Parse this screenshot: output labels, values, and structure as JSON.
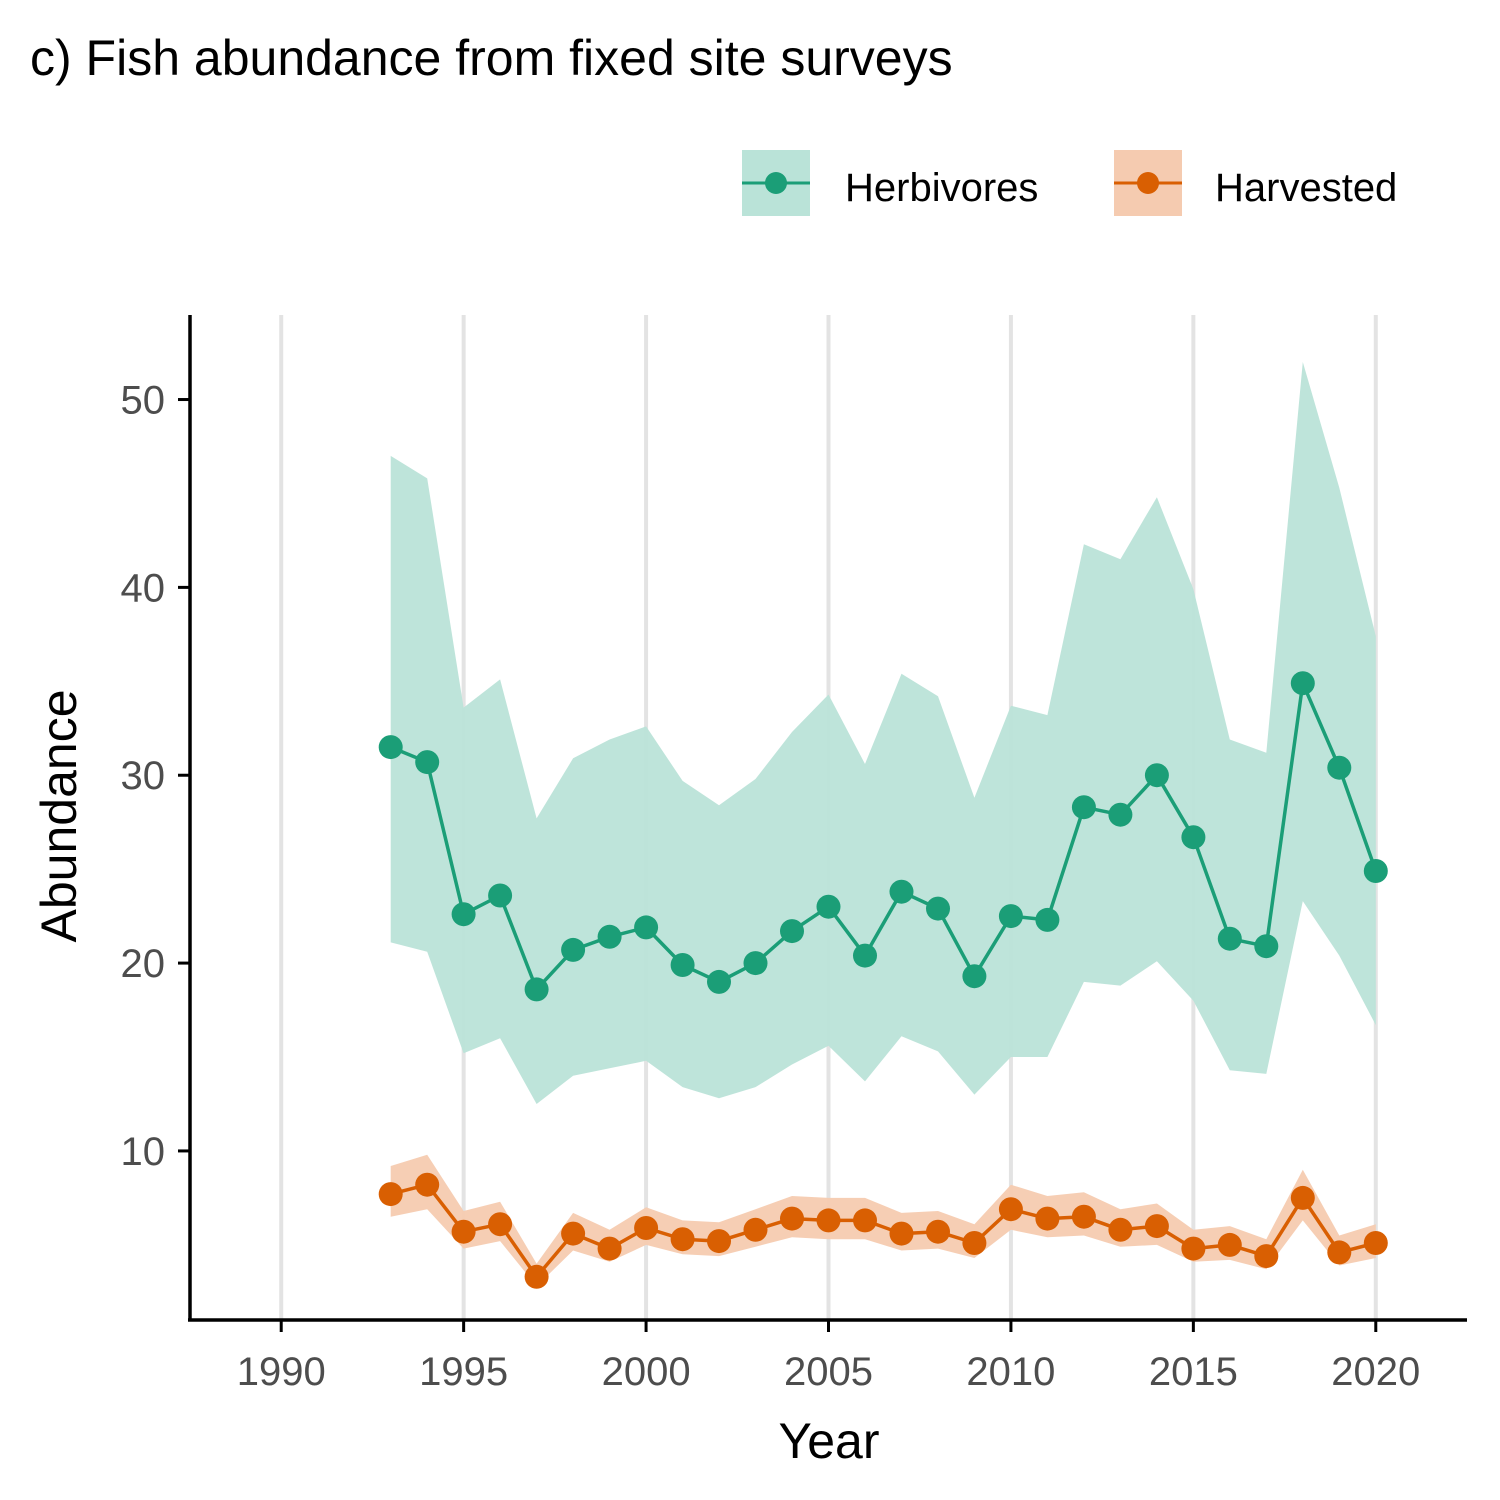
{
  "chart_data": {
    "type": "line",
    "title": "c) Fish abundance from fixed site surveys",
    "xlabel": "Year",
    "ylabel": "Abundance",
    "xlim": [
      1987.5,
      2022.5
    ],
    "ylim": [
      1,
      54.5
    ],
    "x_ticks": [
      1990,
      1995,
      2000,
      2005,
      2010,
      2015,
      2020
    ],
    "x_tick_labels": [
      "1990",
      "1995",
      "2000",
      "2005",
      "2010",
      "2015",
      "2020"
    ],
    "y_ticks": [
      10,
      20,
      30,
      40,
      50
    ],
    "y_tick_labels": [
      "10",
      "20",
      "30",
      "40",
      "50"
    ],
    "grid": "vertical major lines only",
    "legend_position": "top-right",
    "x": [
      1993,
      1994,
      1995,
      1996,
      1997,
      1998,
      1999,
      2000,
      2001,
      2002,
      2003,
      2004,
      2005,
      2006,
      2007,
      2008,
      2009,
      2010,
      2011,
      2012,
      2013,
      2014,
      2015,
      2016,
      2017,
      2018,
      2019,
      2020
    ],
    "series": [
      {
        "name": "Herbivores",
        "color": "#1b9e77",
        "ribbon_color": "#bae3d8",
        "values": [
          31.5,
          30.7,
          22.6,
          23.6,
          18.6,
          20.7,
          21.4,
          21.9,
          19.9,
          19.0,
          20.0,
          21.7,
          23.0,
          20.4,
          23.8,
          22.9,
          19.3,
          22.5,
          22.3,
          28.3,
          27.9,
          30.0,
          26.7,
          21.3,
          20.9,
          34.9,
          30.4,
          24.9
        ],
        "lower": [
          21.1,
          20.6,
          15.2,
          16.0,
          12.5,
          14.0,
          14.4,
          14.8,
          13.4,
          12.8,
          13.4,
          14.6,
          15.6,
          13.7,
          16.1,
          15.3,
          13.0,
          15.0,
          15.0,
          19.0,
          18.8,
          20.1,
          18.0,
          14.3,
          14.1,
          23.3,
          20.4,
          16.7
        ],
        "upper": [
          47.0,
          45.8,
          33.6,
          35.1,
          27.7,
          30.9,
          31.9,
          32.6,
          29.7,
          28.4,
          29.8,
          32.3,
          34.3,
          30.6,
          35.4,
          34.2,
          28.8,
          33.7,
          33.2,
          42.3,
          41.5,
          44.8,
          39.9,
          31.9,
          31.2,
          52.0,
          45.3,
          37.4
        ]
      },
      {
        "name": "Harvested",
        "color": "#d95f02",
        "ribbon_color": "#f5cbb0",
        "values": [
          7.7,
          8.2,
          5.7,
          6.1,
          3.3,
          5.6,
          4.8,
          5.9,
          5.3,
          5.2,
          5.8,
          6.4,
          6.3,
          6.3,
          5.6,
          5.7,
          5.1,
          6.9,
          6.4,
          6.5,
          5.8,
          6.0,
          4.8,
          5.0,
          4.4,
          7.5,
          4.6,
          5.1
        ],
        "lower": [
          6.5,
          6.9,
          4.8,
          5.2,
          2.8,
          4.7,
          4.1,
          5.0,
          4.5,
          4.4,
          4.9,
          5.4,
          5.3,
          5.3,
          4.7,
          4.8,
          4.3,
          5.8,
          5.4,
          5.5,
          4.9,
          5.0,
          4.1,
          4.2,
          3.7,
          6.3,
          3.9,
          4.3
        ],
        "upper": [
          9.2,
          9.8,
          6.8,
          7.3,
          4.0,
          6.7,
          5.8,
          7.0,
          6.3,
          6.2,
          6.9,
          7.6,
          7.5,
          7.5,
          6.7,
          6.8,
          6.1,
          8.2,
          7.6,
          7.8,
          6.9,
          7.2,
          5.8,
          6.0,
          5.3,
          9.0,
          5.5,
          6.1
        ]
      }
    ]
  }
}
